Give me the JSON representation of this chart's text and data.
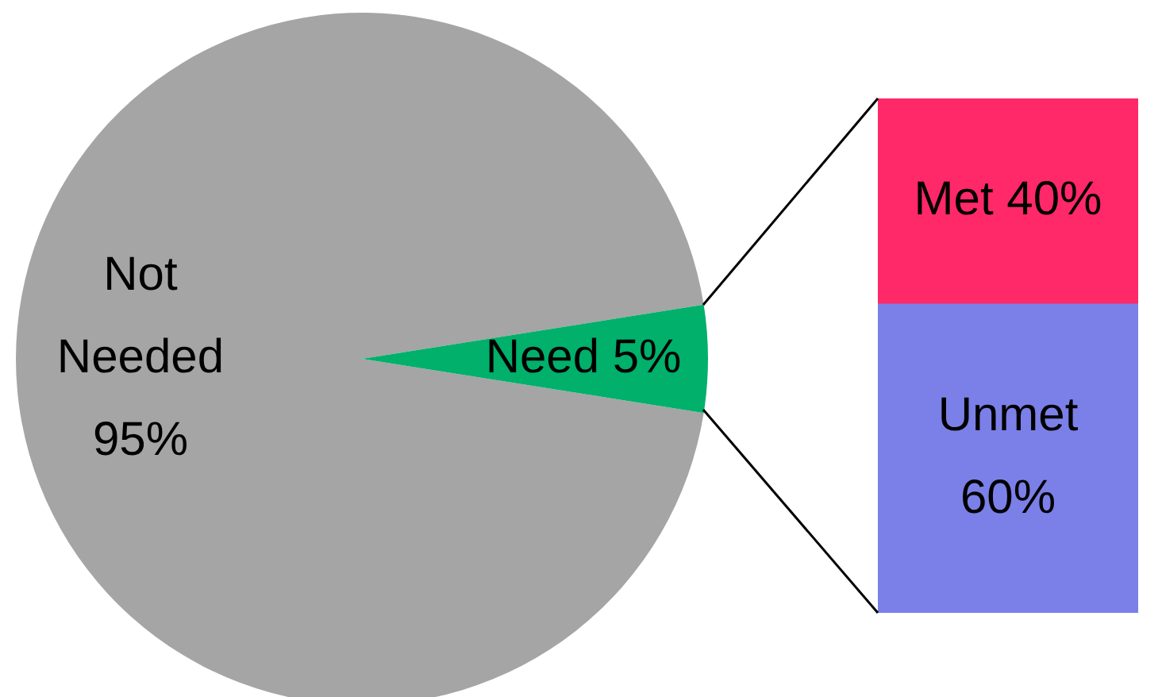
{
  "chart_data": [
    {
      "type": "pie",
      "categories": [
        "Not Needed",
        "Need"
      ],
      "values": [
        95,
        5
      ],
      "colors": [
        "#a5a5a5",
        "#00b06b"
      ],
      "value_labels": [
        "95%",
        "5%"
      ]
    },
    {
      "type": "bar",
      "stacked": true,
      "categories": [
        null
      ],
      "series": [
        {
          "name": "Unmet",
          "color": "#7b80e8",
          "values": [
            60
          ],
          "value_labels": [
            "60%"
          ]
        },
        {
          "name": "Met",
          "color": "#ff2868",
          "values": [
            40
          ],
          "value_labels": [
            "40%"
          ]
        }
      ]
    }
  ]
}
